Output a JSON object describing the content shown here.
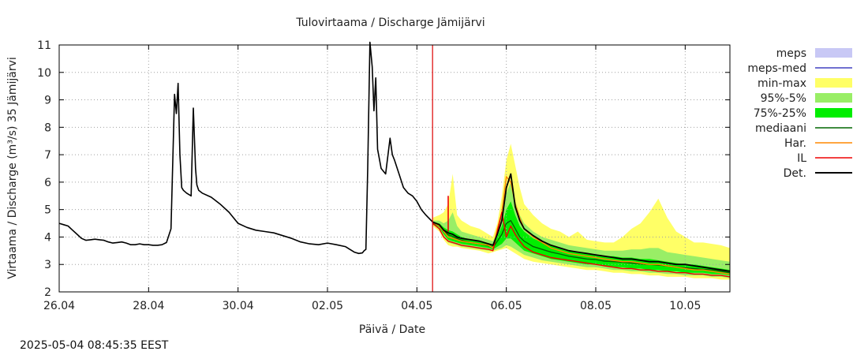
{
  "chart_data": {
    "type": "line",
    "title": "Tulovirtaama / Discharge  Jämijärvi",
    "xlabel": "Päivä / Date",
    "ylabel": "Virtaama / Discharge (m³/s)  35 Jämijärvi",
    "ylim": [
      2,
      11
    ],
    "xlim": [
      0,
      15
    ],
    "yticks": [
      2,
      3,
      4,
      5,
      6,
      7,
      8,
      9,
      10,
      11
    ],
    "xticks": [
      {
        "x": 0,
        "label": "26.04"
      },
      {
        "x": 2,
        "label": "28.04"
      },
      {
        "x": 4,
        "label": "30.04"
      },
      {
        "x": 6,
        "label": "02.05"
      },
      {
        "x": 8,
        "label": "04.05"
      },
      {
        "x": 10,
        "label": "06.05"
      },
      {
        "x": 12,
        "label": "08.05"
      },
      {
        "x": 14,
        "label": "10.05"
      }
    ],
    "forecast_start_x": 8.35,
    "legend_position": "right",
    "legend": [
      {
        "label": "meps",
        "kind": "box",
        "color": "#c8c8f5"
      },
      {
        "label": "meps-med",
        "kind": "line",
        "color": "#4040c0"
      },
      {
        "label": "min-max",
        "kind": "box",
        "color": "#ffff66"
      },
      {
        "label": "95%-5%",
        "kind": "box",
        "color": "#99ee66"
      },
      {
        "label": "75%-25%",
        "kind": "box",
        "color": "#00ee00"
      },
      {
        "label": "mediaani",
        "kind": "line",
        "color": "#006600"
      },
      {
        "label": "Har.",
        "kind": "line",
        "color": "#ff8800"
      },
      {
        "label": "IL",
        "kind": "line",
        "color": "#ee0000"
      },
      {
        "label": "Det.",
        "kind": "line",
        "color": "#000000"
      }
    ],
    "observed": {
      "name": "Det.",
      "x": [
        0,
        0.1,
        0.2,
        0.3,
        0.4,
        0.5,
        0.6,
        0.7,
        0.8,
        0.9,
        1,
        1.1,
        1.2,
        1.3,
        1.4,
        1.5,
        1.6,
        1.7,
        1.8,
        1.9,
        2,
        2.1,
        2.2,
        2.3,
        2.4,
        2.5,
        2.58,
        2.62,
        2.66,
        2.7,
        2.74,
        2.78,
        2.85,
        2.95,
        3.0,
        3.05,
        3.08,
        3.12,
        3.2,
        3.4,
        3.6,
        3.8,
        4,
        4.2,
        4.4,
        4.6,
        4.8,
        5,
        5.2,
        5.4,
        5.6,
        5.8,
        6,
        6.2,
        6.4,
        6.5,
        6.6,
        6.7,
        6.78,
        6.82,
        6.86,
        6.9,
        6.95,
        7.0,
        7.04,
        7.08,
        7.12,
        7.2,
        7.3,
        7.4,
        7.45,
        7.5,
        7.6,
        7.7,
        7.8,
        7.9,
        8,
        8.1,
        8.2,
        8.35
      ],
      "y": [
        4.5,
        4.45,
        4.4,
        4.25,
        4.1,
        3.95,
        3.88,
        3.9,
        3.92,
        3.9,
        3.88,
        3.82,
        3.78,
        3.8,
        3.82,
        3.78,
        3.72,
        3.72,
        3.75,
        3.72,
        3.72,
        3.7,
        3.7,
        3.72,
        3.8,
        4.3,
        9.2,
        8.5,
        9.6,
        7.0,
        5.8,
        5.7,
        5.6,
        5.5,
        8.7,
        6.5,
        5.9,
        5.7,
        5.6,
        5.45,
        5.2,
        4.9,
        4.5,
        4.35,
        4.25,
        4.2,
        4.15,
        4.05,
        3.95,
        3.82,
        3.75,
        3.72,
        3.78,
        3.72,
        3.65,
        3.55,
        3.45,
        3.4,
        3.42,
        3.5,
        3.55,
        6.5,
        11.1,
        10.2,
        8.6,
        9.8,
        7.2,
        6.5,
        6.3,
        7.6,
        7.0,
        6.8,
        6.3,
        5.8,
        5.6,
        5.5,
        5.3,
        5.0,
        4.8,
        4.55
      ]
    },
    "forecast_x": [
      8.35,
      8.5,
      8.6,
      8.7,
      8.8,
      8.9,
      9.0,
      9.2,
      9.4,
      9.6,
      9.7,
      9.8,
      9.9,
      10.0,
      10.1,
      10.2,
      10.3,
      10.4,
      10.6,
      10.8,
      11,
      11.2,
      11.4,
      11.6,
      11.8,
      12,
      12.2,
      12.4,
      12.6,
      12.8,
      13,
      13.2,
      13.4,
      13.6,
      13.8,
      14,
      14.2,
      14.4,
      14.6,
      14.8,
      15
    ],
    "bands": {
      "min-max": {
        "upper": [
          4.7,
          4.8,
          4.9,
          5.2,
          6.3,
          4.8,
          4.6,
          4.4,
          4.3,
          4.1,
          4.0,
          4.5,
          5.5,
          6.8,
          7.4,
          6.6,
          5.8,
          5.2,
          4.8,
          4.5,
          4.3,
          4.2,
          4.0,
          4.2,
          3.9,
          3.85,
          3.8,
          3.8,
          4.0,
          4.3,
          4.5,
          4.9,
          5.4,
          4.7,
          4.2,
          4.0,
          3.8,
          3.8,
          3.75,
          3.7,
          3.6
        ],
        "lower": [
          4.4,
          4.2,
          3.9,
          3.7,
          3.65,
          3.65,
          3.6,
          3.55,
          3.5,
          3.4,
          3.45,
          3.5,
          3.55,
          3.6,
          3.5,
          3.4,
          3.3,
          3.2,
          3.1,
          3.05,
          3.0,
          2.95,
          2.9,
          2.85,
          2.8,
          2.8,
          2.75,
          2.7,
          2.7,
          2.65,
          2.65,
          2.6,
          2.6,
          2.55,
          2.55,
          2.55,
          2.5,
          2.5,
          2.5,
          2.45,
          2.45
        ]
      },
      "95%-5%": {
        "upper": [
          4.6,
          4.6,
          4.5,
          4.6,
          4.9,
          4.4,
          4.2,
          4.1,
          4.0,
          3.9,
          3.85,
          4.2,
          4.8,
          5.6,
          6.0,
          5.3,
          4.8,
          4.5,
          4.2,
          4.0,
          3.9,
          3.8,
          3.7,
          3.65,
          3.6,
          3.55,
          3.5,
          3.5,
          3.5,
          3.55,
          3.55,
          3.6,
          3.6,
          3.45,
          3.4,
          3.35,
          3.3,
          3.25,
          3.2,
          3.15,
          3.1
        ],
        "lower": [
          4.45,
          4.3,
          4.0,
          3.8,
          3.75,
          3.7,
          3.65,
          3.6,
          3.55,
          3.5,
          3.5,
          3.55,
          3.6,
          3.7,
          3.65,
          3.55,
          3.45,
          3.35,
          3.25,
          3.15,
          3.1,
          3.05,
          3.0,
          2.95,
          2.9,
          2.9,
          2.85,
          2.8,
          2.8,
          2.75,
          2.75,
          2.7,
          2.7,
          2.65,
          2.65,
          2.6,
          2.6,
          2.6,
          2.55,
          2.55,
          2.5
        ]
      },
      "75%-25%": {
        "upper": [
          4.55,
          4.5,
          4.35,
          4.25,
          4.2,
          4.1,
          4.0,
          3.9,
          3.85,
          3.75,
          3.7,
          4.0,
          4.4,
          5.0,
          5.3,
          4.8,
          4.4,
          4.2,
          3.95,
          3.8,
          3.7,
          3.6,
          3.5,
          3.45,
          3.4,
          3.35,
          3.3,
          3.3,
          3.25,
          3.25,
          3.2,
          3.2,
          3.15,
          3.1,
          3.05,
          3.0,
          3.0,
          2.95,
          2.9,
          2.85,
          2.8
        ],
        "lower": [
          4.5,
          4.35,
          4.1,
          3.9,
          3.85,
          3.8,
          3.75,
          3.7,
          3.65,
          3.6,
          3.55,
          3.65,
          3.75,
          3.95,
          3.95,
          3.8,
          3.65,
          3.5,
          3.4,
          3.3,
          3.2,
          3.15,
          3.1,
          3.05,
          3.0,
          3.0,
          2.95,
          2.9,
          2.9,
          2.85,
          2.85,
          2.8,
          2.8,
          2.75,
          2.75,
          2.7,
          2.7,
          2.7,
          2.65,
          2.65,
          2.6
        ]
      }
    },
    "forecast_series": [
      {
        "name": "mediaani",
        "y": [
          4.52,
          4.42,
          4.22,
          4.08,
          4.02,
          3.95,
          3.88,
          3.8,
          3.75,
          3.68,
          3.62,
          3.85,
          4.1,
          4.5,
          4.6,
          4.3,
          4.0,
          3.85,
          3.65,
          3.55,
          3.45,
          3.38,
          3.3,
          3.25,
          3.2,
          3.18,
          3.12,
          3.1,
          3.08,
          3.05,
          3.02,
          3.0,
          2.98,
          2.95,
          2.9,
          2.88,
          2.85,
          2.82,
          2.8,
          2.75,
          2.7
        ]
      },
      {
        "name": "Har.",
        "y": [
          4.55,
          4.4,
          4.2,
          4.0,
          3.95,
          3.9,
          3.85,
          3.8,
          3.75,
          3.7,
          3.6,
          4.3,
          4.9,
          6.2,
          6.0,
          5.2,
          4.7,
          4.3,
          4.0,
          3.8,
          3.6,
          3.5,
          3.4,
          3.35,
          3.3,
          3.25,
          3.2,
          3.15,
          3.1,
          3.1,
          3.05,
          3.0,
          3.0,
          2.95,
          2.9,
          2.85,
          2.8,
          2.8,
          2.75,
          2.7,
          2.65
        ]
      },
      {
        "name": "IL",
        "y": [
          4.5,
          4.3,
          4.0,
          3.85,
          3.8,
          3.75,
          3.7,
          3.65,
          3.6,
          3.55,
          3.5,
          4.2,
          4.9,
          4.0,
          4.4,
          4.1,
          3.85,
          3.65,
          3.45,
          3.35,
          3.25,
          3.2,
          3.15,
          3.1,
          3.05,
          3.0,
          2.95,
          2.9,
          2.85,
          2.85,
          2.8,
          2.8,
          2.75,
          2.75,
          2.7,
          2.7,
          2.65,
          2.65,
          2.6,
          2.6,
          2.55
        ]
      },
      {
        "name": "Det.",
        "y": [
          4.55,
          4.45,
          4.25,
          4.15,
          4.1,
          4.0,
          3.95,
          3.9,
          3.85,
          3.75,
          3.7,
          4.1,
          4.6,
          5.8,
          6.3,
          5.1,
          4.6,
          4.3,
          4.05,
          3.85,
          3.7,
          3.6,
          3.5,
          3.45,
          3.4,
          3.35,
          3.3,
          3.25,
          3.2,
          3.2,
          3.15,
          3.1,
          3.1,
          3.05,
          3.0,
          3.0,
          2.95,
          2.9,
          2.85,
          2.8,
          2.75
        ]
      }
    ],
    "spike": {
      "x": 8.7,
      "y": 5.5
    },
    "grid": true
  },
  "timestamp": "2025-05-04 08:45:35 EEST"
}
